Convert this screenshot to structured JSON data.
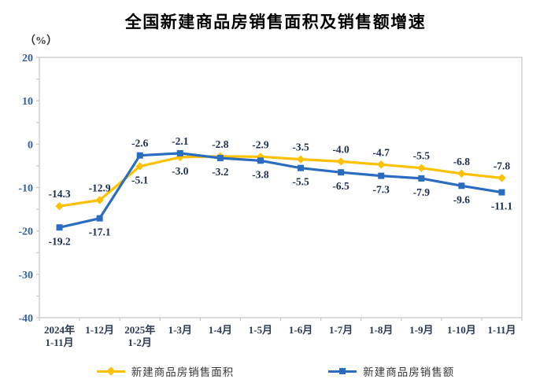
{
  "chart_data": {
    "type": "line",
    "title": "全国新建商品房销售面积及销售额增速",
    "unit_label": "（%）",
    "categories": [
      "2024年\n1-11月",
      "1-12月",
      "2025年\n1-2月",
      "1-3月",
      "1-4月",
      "1-5月",
      "1-6月",
      "1-7月",
      "1-8月",
      "1-9月",
      "1-10月",
      "1-11月"
    ],
    "series": [
      {
        "name": "新建商品房销售面积",
        "color": "#FFC000",
        "marker": "diamond",
        "values": [
          -14.3,
          -12.9,
          -5.1,
          -3.0,
          -2.8,
          -2.9,
          -3.5,
          -4.0,
          -4.7,
          -5.5,
          -6.8,
          -7.8
        ]
      },
      {
        "name": "新建商品房销售额",
        "color": "#2A6DC0",
        "marker": "square",
        "values": [
          -19.2,
          -17.1,
          -2.6,
          -2.1,
          -3.2,
          -3.8,
          -5.5,
          -6.5,
          -7.3,
          -7.9,
          -9.6,
          -11.1
        ]
      }
    ],
    "ylim": [
      -40,
      20
    ],
    "ytick_step": 10,
    "ytick_minor_step": 5,
    "yticks": [
      20,
      10,
      0,
      -10,
      -20,
      -30,
      -40
    ],
    "grid": false,
    "legend_position": "bottom",
    "colors": {
      "plot_border": "#D0CECE",
      "tick": "#C6C6C6",
      "ytick_text": "#35629E",
      "data_label_text": "#1D2D50",
      "title_text": "#000000"
    }
  }
}
